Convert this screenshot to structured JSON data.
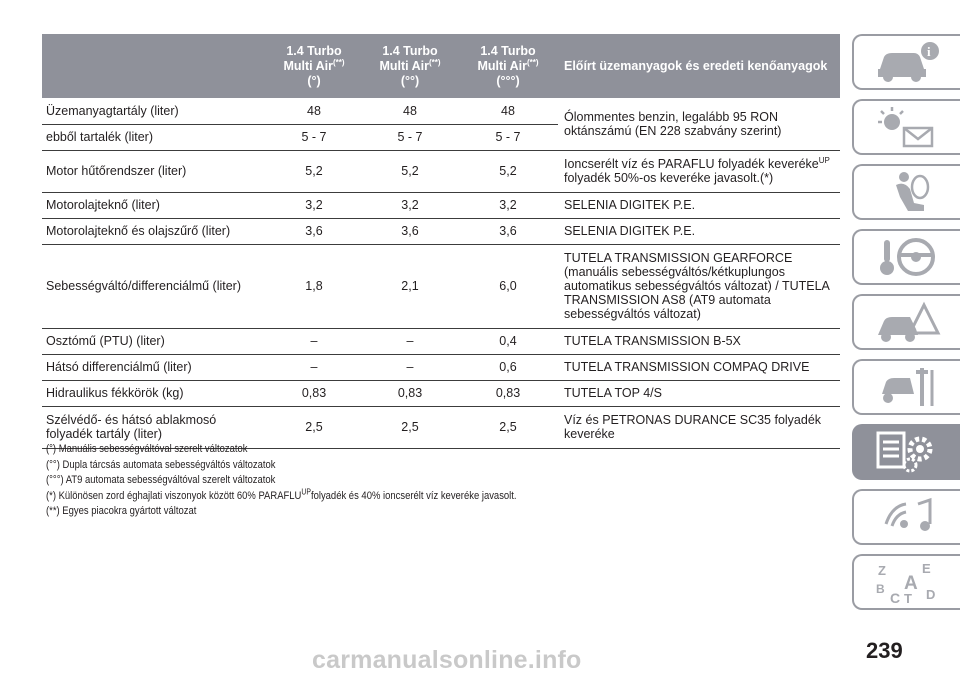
{
  "table": {
    "headers": {
      "blank": "",
      "col1": {
        "line1": "1.4 Turbo",
        "line2": "Multi Air",
        "sup": "(**)",
        "line3": "(°)"
      },
      "col2": {
        "line1": "1.4 Turbo",
        "line2": "Multi Air",
        "sup": "(**)",
        "line3": "(°°)"
      },
      "col3": {
        "line1": "1.4 Turbo",
        "line2": "Multi Air",
        "sup": "(**)",
        "line3": "(°°°)"
      },
      "lubricants": "Előírt üzemanyagok és eredeti kenőanyagok"
    },
    "rows": [
      {
        "label": "Üzemanyagtartály (liter)",
        "v1": "48",
        "v2": "48",
        "v3": "48",
        "lube": "Ólommentes benzin, legalább 95 RON oktánszámú (EN 228 szabvány szerint)"
      },
      {
        "label": "ebből tartalék (liter)",
        "v1": "5 - 7",
        "v2": "5 - 7",
        "v3": "5 - 7"
      },
      {
        "label": "Motor hűtőrendszer (liter)",
        "v1": "5,2",
        "v2": "5,2",
        "v3": "5,2",
        "lube_a": "Ioncserélt víz és PARAFLU folyadék keveréke",
        "lube_sup": "UP",
        "lube_b": "folyadék 50%-os keveréke javasolt.",
        "lube_mark": "(*)"
      },
      {
        "label": "Motorolajteknő (liter)",
        "v1": "3,2",
        "v2": "3,2",
        "v3": "3,2",
        "lube": "SELENIA DIGITEK P.E."
      },
      {
        "label": "Motorolajteknő és olajszűrő (liter)",
        "v1": "3,6",
        "v2": "3,6",
        "v3": "3,6",
        "lube": "SELENIA DIGITEK P.E."
      },
      {
        "label": "Sebességváltó/differenciálmű (liter)",
        "v1": "1,8",
        "v2": "2,1",
        "v3": "6,0",
        "lube": "TUTELA TRANSMISSION GEARFORCE (manuális sebességváltós/kétkuplungos automatikus sebességváltós változat) / TUTELA TRANSMISSION AS8 (AT9 automata sebességváltós változat)"
      },
      {
        "label": "Osztómű (PTU) (liter)",
        "v1": "–",
        "v2": "–",
        "v3": "0,4",
        "lube": "TUTELA TRANSMISSION B-5X"
      },
      {
        "label": "Hátsó differenciálmű (liter)",
        "v1": "–",
        "v2": "–",
        "v3": "0,6",
        "lube": "TUTELA TRANSMISSION COMPAQ DRIVE"
      },
      {
        "label": "Hidraulikus fékkörök (kg)",
        "v1": "0,83",
        "v2": "0,83",
        "v3": "0,83",
        "lube": "TUTELA TOP 4/S"
      },
      {
        "label": "Szélvédő- és hátsó ablakmosó folyadék tartály (liter)",
        "v1": "2,5",
        "v2": "2,5",
        "v3": "2,5",
        "lube": "Víz és PETRONAS DURANCE SC35 folyadék keveréke"
      }
    ]
  },
  "notes": {
    "n1": "(°) Manuális sebességváltóval szerelt változatok",
    "n2": "(°°) Dupla tárcsás automata sebességváltós változatok",
    "n3": "(°°°) AT9 automata sebességváltóval szerelt változatok",
    "n4a": "(*) Különösen zord éghajlati viszonyok között 60% PARAFLU",
    "n4sup": "UP",
    "n4b": "folyadék és 40% ioncserélt víz keveréke javasolt.",
    "n5": "(**) Egyes piacokra gyártott változat"
  },
  "sidebar": {
    "icons": [
      "car-info-icon",
      "warning-lights-icon",
      "seat-airbag-icon",
      "steering-key-icon",
      "breakdown-icon",
      "maintenance-tools-icon",
      "technical-data-icon",
      "multimedia-icon",
      "index-icon"
    ],
    "active_index": 6,
    "index_letters": [
      "Z",
      "E",
      "A",
      "B",
      "C",
      "T",
      "D"
    ]
  },
  "colors": {
    "header_bg": "#8f919a",
    "tab_border": "#9a9ca3",
    "icon_gray": "#a8aab0"
  },
  "page_number": "239",
  "watermark": "carmanualsonline.info"
}
